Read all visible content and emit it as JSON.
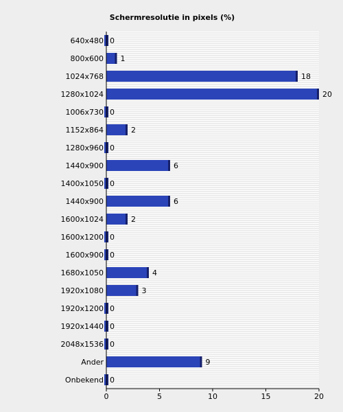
{
  "chart_data": {
    "type": "bar",
    "orientation": "horizontal",
    "title": "Schermresolutie in pixels (%)",
    "xlabel": "",
    "ylabel": "",
    "xlim": [
      0,
      20
    ],
    "xticks": [
      "0",
      "5",
      "10",
      "15",
      "20"
    ],
    "grid": true,
    "legend": "none",
    "bar_color": "#2b44b8",
    "bar_shade_color": "#16206a",
    "plot_background": "#ffffff",
    "grid_color": "#d8d8d8",
    "categories": [
      "640x480",
      "800x600",
      "1024x768",
      "1280x1024",
      "1006x730",
      "1152x864",
      "1280x960",
      "1440x900",
      "1400x1050",
      "1440x900",
      "1600x1024",
      "1600x1200",
      "1600x900",
      "1680x1050",
      "1920x1080",
      "1920x1200",
      "1920x1440",
      "2048x1536",
      "Ander",
      "Onbekend"
    ],
    "values": [
      0,
      1,
      18,
      20,
      0,
      2,
      0,
      6,
      0,
      6,
      2,
      0,
      0,
      4,
      3,
      0,
      0,
      0,
      9,
      0
    ],
    "value_labels": [
      "0",
      "1",
      "18",
      "20",
      "0",
      "2",
      "0",
      "6",
      "0",
      "6",
      "2",
      "0",
      "0",
      "4",
      "3",
      "0",
      "0",
      "0",
      "9",
      "0"
    ]
  }
}
